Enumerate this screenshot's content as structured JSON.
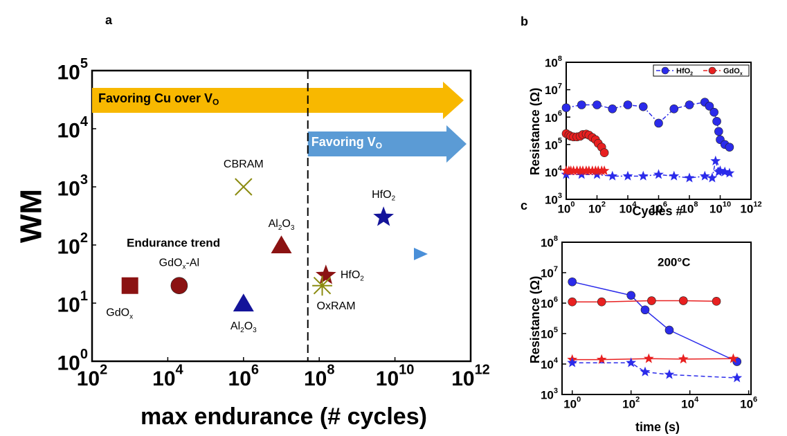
{
  "chart_data": [
    {
      "type": "scatter",
      "panel": "a",
      "xlabel": "max endurance (# cycles)",
      "ylabel": "WM",
      "xscale": "log",
      "yscale": "log",
      "xlim": [
        100,
        1000000000000
      ],
      "ylim": [
        1,
        100000
      ],
      "xticks": [
        {
          "value": 100,
          "label": [
            "10",
            "2"
          ]
        },
        {
          "value": 10000,
          "label": [
            "10",
            "4"
          ]
        },
        {
          "value": 1000000,
          "label": [
            "10",
            "6"
          ]
        },
        {
          "value": 100000000,
          "label": [
            "10",
            "8"
          ]
        },
        {
          "value": 10000000000,
          "label": [
            "10",
            "10"
          ]
        },
        {
          "value": 1000000000000,
          "label": [
            "10",
            "12"
          ]
        }
      ],
      "yticks": [
        {
          "value": 1,
          "label": [
            "10",
            "0"
          ]
        },
        {
          "value": 10,
          "label": [
            "10",
            "1"
          ]
        },
        {
          "value": 100,
          "label": [
            "10",
            "2"
          ]
        },
        {
          "value": 1000,
          "label": [
            "10",
            "3"
          ]
        },
        {
          "value": 10000,
          "label": [
            "10",
            "4"
          ]
        },
        {
          "value": 100000,
          "label": [
            "10",
            "5"
          ]
        }
      ],
      "vline": 50000000,
      "points": [
        {
          "label": [
            "GdO",
            "x"
          ],
          "x": 1000,
          "y": 20,
          "marker": "square",
          "color": "#8b1212"
        },
        {
          "label": [
            "GdO",
            "x",
            "-Al"
          ],
          "x": 20000,
          "y": 20,
          "marker": "circle",
          "color": "#8b1212"
        },
        {
          "label": [
            "Al",
            "2",
            "O",
            "3"
          ],
          "x": 1000000,
          "y": 10,
          "marker": "triangle",
          "color": "#14149a"
        },
        {
          "label": [
            "Al",
            "2",
            "O",
            "3"
          ],
          "x": 10000000,
          "y": 100,
          "marker": "triangle",
          "color": "#8b1212"
        },
        {
          "label": "CBRAM",
          "x": 1000000,
          "y": 1000,
          "marker": "x",
          "color": "#8b8b10"
        },
        {
          "label": [
            "HfO",
            "2"
          ],
          "x": 150000000,
          "y": 30,
          "marker": "star",
          "color": "#8b1212"
        },
        {
          "label": "OxRAM",
          "x": 120000000,
          "y": 20,
          "marker": "asterisk",
          "color": "#8b8b10"
        },
        {
          "label": [
            "HfO",
            "2"
          ],
          "x": 5000000000,
          "y": 300,
          "marker": "star",
          "color": "#14149a"
        }
      ],
      "annotations": [
        {
          "text": [
            "Favoring Cu over V",
            "O"
          ]
        },
        {
          "text": [
            "Favoring V",
            "O"
          ]
        },
        {
          "text": "Endurance trend"
        }
      ]
    },
    {
      "type": "line",
      "panel": "b",
      "xlabel": "Cycles #",
      "ylabel": "Resistance (Ω)",
      "xscale": "log",
      "yscale": "log",
      "xlim": [
        1,
        1000000000000
      ],
      "ylim": [
        1000,
        100000000
      ],
      "xticks": [
        {
          "value": 1,
          "label": [
            "10",
            "0"
          ]
        },
        {
          "value": 100,
          "label": [
            "10",
            "2"
          ]
        },
        {
          "value": 10000,
          "label": [
            "10",
            "4"
          ]
        },
        {
          "value": 1000000,
          "label": [
            "10",
            "6"
          ]
        },
        {
          "value": 100000000,
          "label": [
            "10",
            "8"
          ]
        },
        {
          "value": 10000000000,
          "label": [
            "10",
            "10"
          ]
        },
        {
          "value": 1000000000000,
          "label": [
            "10",
            "12"
          ]
        }
      ],
      "yticks": [
        {
          "value": 1000,
          "label": [
            "10",
            "3"
          ]
        },
        {
          "value": 10000,
          "label": [
            "10",
            "4"
          ]
        },
        {
          "value": 100000,
          "label": [
            "10",
            "5"
          ]
        },
        {
          "value": 1000000,
          "label": [
            "10",
            "6"
          ]
        },
        {
          "value": 10000000,
          "label": [
            "10",
            "7"
          ]
        },
        {
          "value": 100000000,
          "label": [
            "10",
            "8"
          ]
        }
      ],
      "series": [
        {
          "name": [
            "HfO",
            "2"
          ],
          "color": "#2b2bea",
          "marker": "circle",
          "line": "dashdot",
          "x": [
            1,
            10,
            100,
            1000,
            10000,
            100000,
            1000000,
            10000000,
            100000000,
            1000000000,
            2000000000,
            4000000000,
            6000000000,
            8000000000,
            10000000000,
            20000000000,
            40000000000
          ],
          "values": [
            2200000,
            2800000,
            2800000,
            2000000,
            2800000,
            2400000,
            600000,
            2000000,
            2800000,
            3500000,
            2500000,
            1500000,
            700000,
            300000,
            150000,
            100000,
            80000
          ]
        },
        {
          "name": [
            "GdO",
            "x"
          ],
          "color": "#e82020",
          "marker": "circle",
          "line": "dashdot",
          "x": [
            1,
            1.5,
            2,
            3,
            5,
            8,
            12,
            20,
            30,
            50,
            80,
            120,
            200,
            300
          ],
          "values": [
            250000,
            220000,
            200000,
            190000,
            190000,
            200000,
            230000,
            240000,
            220000,
            180000,
            150000,
            110000,
            80000,
            50000
          ]
        },
        {
          "color": "#2b2bea",
          "marker": "star",
          "line": "dashdot",
          "x": [
            1,
            10,
            100,
            1000,
            10000,
            100000,
            1000000,
            10000000,
            100000000,
            1000000000,
            3000000000,
            5000000000,
            8000000000,
            10000000000,
            20000000000,
            40000000000
          ],
          "values": [
            8000,
            8000,
            8000,
            7000,
            7000,
            7000,
            8000,
            7000,
            6000,
            7000,
            6000,
            25000,
            10000,
            11000,
            10000,
            9000
          ]
        },
        {
          "color": "#e82020",
          "marker": "star",
          "line": "dashdot",
          "x": [
            1,
            1.5,
            2,
            3,
            5,
            8,
            12,
            20,
            30,
            50,
            80,
            120,
            200,
            300
          ],
          "values": [
            11000,
            11000,
            11000,
            11000,
            11000,
            11000,
            11000,
            11000,
            11000,
            11000,
            11000,
            11000,
            11000,
            11000
          ]
        }
      ]
    },
    {
      "type": "line",
      "panel": "c",
      "xlabel": "time (s)",
      "ylabel": "Resistance (Ω)",
      "annotation": "200°C",
      "xscale": "log",
      "yscale": "log",
      "xlim": [
        0.45,
        1200000
      ],
      "ylim": [
        1000,
        100000000
      ],
      "xticks": [
        {
          "value": 1,
          "label": [
            "10",
            "0"
          ]
        },
        {
          "value": 100,
          "label": [
            "10",
            "2"
          ]
        },
        {
          "value": 10000,
          "label": [
            "10",
            "4"
          ]
        },
        {
          "value": 1000000,
          "label": [
            "10",
            "6"
          ]
        }
      ],
      "yticks": [
        {
          "value": 1000,
          "label": [
            "10",
            "3"
          ]
        },
        {
          "value": 10000,
          "label": [
            "10",
            "4"
          ]
        },
        {
          "value": 100000,
          "label": [
            "10",
            "5"
          ]
        },
        {
          "value": 1000000,
          "label": [
            "10",
            "6"
          ]
        },
        {
          "value": 10000000,
          "label": [
            "10",
            "7"
          ]
        },
        {
          "value": 100000000,
          "label": [
            "10",
            "8"
          ]
        }
      ],
      "series": [
        {
          "color": "#2b2bea",
          "marker": "circle",
          "line": "solid",
          "x": [
            1,
            100,
            300,
            2000,
            400000
          ],
          "values": [
            5000000,
            1800000,
            600000,
            130000,
            12000
          ]
        },
        {
          "color": "#e82020",
          "marker": "circle",
          "line": "solid",
          "x": [
            1,
            10,
            500,
            6000,
            80000
          ],
          "values": [
            1100000,
            1100000,
            1200000,
            1200000,
            1150000
          ]
        },
        {
          "color": "#e82020",
          "marker": "star",
          "line": "solid",
          "x": [
            1,
            10,
            400,
            6000,
            300000
          ],
          "values": [
            14000,
            14000,
            15000,
            14500,
            15000
          ]
        },
        {
          "color": "#2b2bea",
          "marker": "star",
          "line": "dashed",
          "x": [
            1,
            100,
            300,
            2000,
            400000
          ],
          "values": [
            11000,
            11000,
            5500,
            4500,
            3500
          ]
        }
      ]
    }
  ]
}
